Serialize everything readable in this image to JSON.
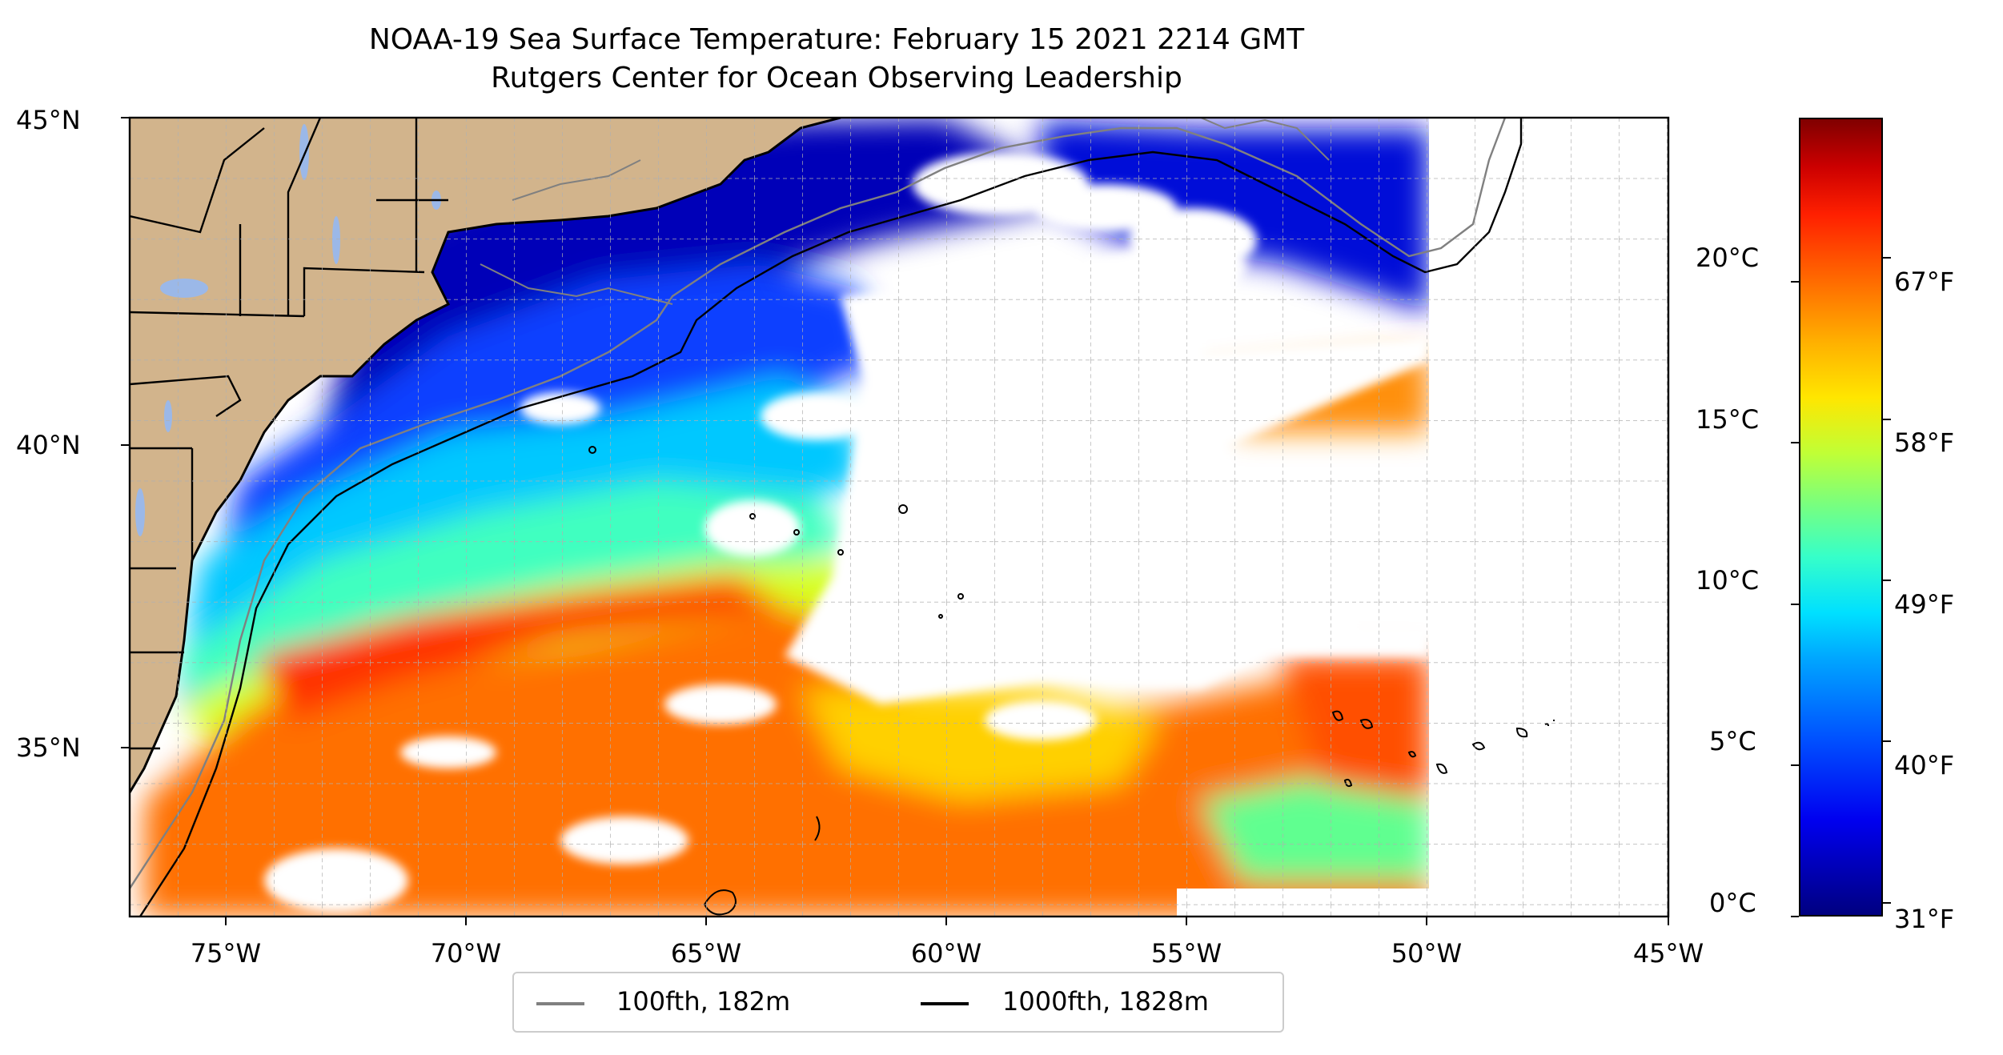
{
  "title": {
    "line1": "NOAA-19 Sea Surface Temperature: February 15 2021 2214 GMT",
    "line2": "Rutgers Center for Ocean Observing Leadership"
  },
  "x_ticks": [
    "75°W",
    "70°W",
    "65°W",
    "60°W",
    "55°W",
    "50°W",
    "45°W"
  ],
  "y_ticks": [
    "45°N",
    "40°N",
    "35°N"
  ],
  "colorbar": {
    "celsius_ticks": [
      "20°C",
      "15°C",
      "10°C",
      "5°C",
      "0°C"
    ],
    "fahrenheit_ticks": [
      "67°F",
      "58°F",
      "49°F",
      "40°F",
      "31°F"
    ],
    "colormap": "jet",
    "range_celsius": [
      -0.5,
      24.5
    ]
  },
  "legend": {
    "items": [
      {
        "label": "100fth, 182m",
        "color": "#808080"
      },
      {
        "label": "1000fth, 1828m",
        "color": "#000000"
      }
    ]
  },
  "map": {
    "extent_lon": [
      -77,
      -45
    ],
    "extent_lat": [
      32.2,
      45
    ],
    "land_color": "#D2B48C",
    "lake_color": "#9BB8E8",
    "no_data_color": "#ffffff",
    "gridlines": true
  }
}
